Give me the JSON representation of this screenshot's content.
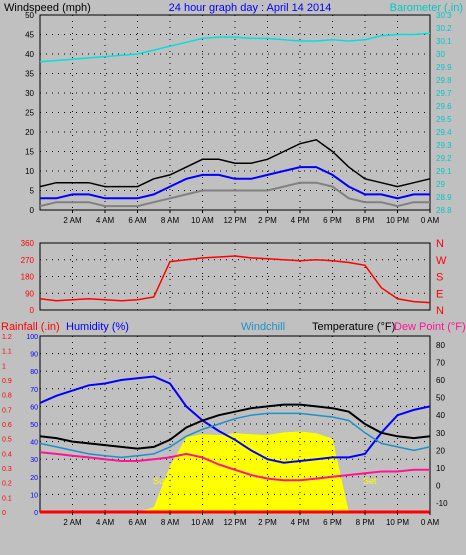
{
  "top_chart": {
    "title": "24 hour graph day : April 14 2014",
    "left_label": "Windspeed (mph)",
    "right_label": "Barometer (.in)",
    "left_ticks": [
      "0",
      "5",
      "10",
      "15",
      "20",
      "25",
      "30",
      "35",
      "40",
      "45",
      "50"
    ],
    "right_ticks": [
      "28.8",
      "28.9",
      "29",
      "29.1",
      "29.2",
      "29.3",
      "29.4",
      "29.5",
      "29.6",
      "29.7",
      "29.8",
      "29.9",
      "30",
      "30.1",
      "30.2",
      "30.3"
    ]
  },
  "mid_chart": {
    "left_ticks": [
      "0",
      "90",
      "180",
      "270",
      "360"
    ],
    "right_letters": [
      "N",
      "W",
      "S",
      "E",
      "N"
    ]
  },
  "bottom_chart": {
    "rain_label": "Rainfall (.in)",
    "humidity_label": "Humidity (%)",
    "windchill_label": "Windchill",
    "temp_label": "Temperature (°F)",
    "dew_label": "Dew Point (°F)",
    "rain_ticks": [
      "0",
      "0.1",
      "0.2",
      "0.3",
      "0.4",
      "0.5",
      "0.6",
      "0.7",
      "0.8",
      "0.9",
      "1",
      "1.1",
      "1.2"
    ],
    "humidity_ticks": [
      "0",
      "10",
      "20",
      "30",
      "40",
      "50",
      "60",
      "70",
      "80",
      "90",
      "100"
    ],
    "temp_ticks": [
      "-10",
      "0",
      "10",
      "20",
      "30",
      "40",
      "50",
      "60",
      "70",
      "80"
    ],
    "sunrise_label": "Sun Rise",
    "sunset_label": "Set"
  },
  "x_ticks": [
    "2 AM",
    "4 AM",
    "6 AM",
    "8 AM",
    "10 AM",
    "12 PM",
    "2 PM",
    "4 PM",
    "6 PM",
    "8 PM",
    "10 PM",
    "0 AM"
  ],
  "colors": {
    "wind_gust": "#000000",
    "wind_avg": "#0000ff",
    "wind_speed": "#808080",
    "barometer": "#00e0e0",
    "direction": "#ff0000",
    "humidity": "#0000ff",
    "windchill": "#1e90c8",
    "temperature": "#000000",
    "dew_point": "#ff1493",
    "solar": "#ffff00",
    "rain": "#ff0000"
  },
  "chart_data": [
    {
      "type": "line",
      "title": "24 hour graph day : April 14 2014",
      "ylabel": "Windspeed (mph)",
      "y2label": "Barometer (.in)",
      "ylim": [
        0,
        50
      ],
      "y2lim": [
        28.8,
        30.3
      ],
      "x_hours": [
        0,
        1,
        2,
        3,
        4,
        5,
        6,
        7,
        8,
        9,
        10,
        11,
        12,
        13,
        14,
        15,
        16,
        17,
        18,
        19,
        20,
        21,
        22,
        23,
        24
      ],
      "series": [
        {
          "key": "wind_gust",
          "values": [
            6,
            7,
            7,
            7,
            6,
            6,
            6,
            8,
            9,
            11,
            13,
            13,
            12,
            12,
            13,
            15,
            17,
            18,
            15,
            11,
            8,
            7,
            6,
            7,
            8
          ]
        },
        {
          "key": "wind_avg",
          "values": [
            3,
            3,
            4,
            4,
            3,
            3,
            3,
            4,
            6,
            8,
            9,
            9,
            8,
            8,
            9,
            10,
            11,
            11,
            9,
            6,
            4,
            4,
            3,
            4,
            4
          ]
        },
        {
          "key": "wind_speed",
          "values": [
            1,
            2,
            2,
            2,
            1,
            1,
            1,
            2,
            3,
            4,
            5,
            5,
            5,
            5,
            5,
            6,
            7,
            7,
            6,
            3,
            2,
            2,
            1,
            2,
            2
          ]
        },
        {
          "key": "barometer",
          "axis": "right",
          "values": [
            29.94,
            29.95,
            29.96,
            29.97,
            29.98,
            29.99,
            30.0,
            30.03,
            30.06,
            30.09,
            30.12,
            30.13,
            30.13,
            30.12,
            30.12,
            30.11,
            30.1,
            30.1,
            30.11,
            30.1,
            30.11,
            30.14,
            30.15,
            30.15,
            30.16
          ]
        }
      ]
    },
    {
      "type": "scatter",
      "ylabel": "Wind direction",
      "ylim": [
        0,
        360
      ],
      "x_hours": [
        0,
        1,
        2,
        3,
        4,
        5,
        6,
        7,
        8,
        9,
        10,
        11,
        12,
        13,
        14,
        15,
        16,
        17,
        18,
        19,
        20,
        21,
        22,
        23,
        24
      ],
      "series": [
        {
          "key": "direction",
          "values": [
            60,
            50,
            55,
            60,
            55,
            50,
            55,
            70,
            260,
            270,
            280,
            285,
            290,
            280,
            275,
            270,
            265,
            270,
            265,
            255,
            240,
            120,
            60,
            45,
            40
          ]
        }
      ]
    },
    {
      "type": "line",
      "ylim_rain": [
        0,
        1.2
      ],
      "ylim_humidity": [
        0,
        100
      ],
      "ylim_temp": [
        -15,
        85
      ],
      "x_hours": [
        0,
        1,
        2,
        3,
        4,
        5,
        6,
        7,
        8,
        9,
        10,
        11,
        12,
        13,
        14,
        15,
        16,
        17,
        18,
        19,
        20,
        21,
        22,
        23,
        24
      ],
      "series": [
        {
          "key": "humidity",
          "axis": "humidity",
          "values": [
            62,
            66,
            69,
            72,
            73,
            75,
            76,
            77,
            73,
            60,
            52,
            46,
            41,
            35,
            30,
            28,
            29,
            30,
            31,
            31,
            33,
            45,
            55,
            58,
            60
          ]
        },
        {
          "key": "temperature",
          "axis": "temp",
          "values": [
            28,
            27,
            25,
            24,
            23,
            22,
            21,
            22,
            26,
            33,
            37,
            40,
            42,
            44,
            45,
            46,
            46,
            45,
            44,
            42,
            35,
            30,
            28,
            27,
            28
          ]
        },
        {
          "key": "windchill",
          "axis": "temp",
          "values": [
            24,
            22,
            20,
            18,
            17,
            16,
            17,
            18,
            22,
            28,
            32,
            35,
            38,
            40,
            41,
            41,
            41,
            40,
            39,
            37,
            30,
            24,
            22,
            20,
            22
          ]
        },
        {
          "key": "dew_point",
          "axis": "temp",
          "values": [
            19,
            18,
            17,
            16,
            15,
            14,
            14,
            15,
            16,
            18,
            16,
            12,
            9,
            6,
            4,
            3,
            3,
            4,
            5,
            6,
            7,
            8,
            8,
            9,
            9
          ]
        },
        {
          "key": "solar",
          "axis": "solar",
          "values": [
            0,
            0,
            0,
            0,
            0,
            0,
            0,
            5,
            50,
            82,
            85,
            84,
            86,
            85,
            84,
            87,
            88,
            86,
            80,
            0,
            0,
            0,
            0,
            0,
            0
          ]
        },
        {
          "key": "rain",
          "axis": "rain",
          "values": [
            0,
            0,
            0,
            0,
            0,
            0,
            0,
            0,
            0,
            0,
            0,
            0,
            0,
            0,
            0,
            0,
            0,
            0,
            0,
            0,
            0,
            0,
            0,
            0,
            0
          ]
        }
      ]
    }
  ]
}
